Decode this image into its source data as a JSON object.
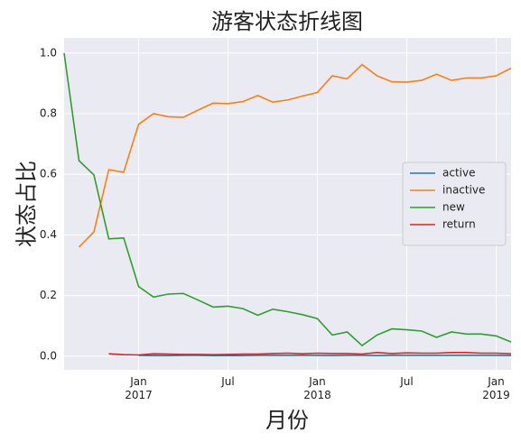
{
  "chart_data": {
    "type": "line",
    "title": "游客状态折线图",
    "x_label": "月份",
    "y_label": "状态占比",
    "x": [
      "2016-08",
      "2016-09",
      "2016-10",
      "2016-11",
      "2016-12",
      "2017-01",
      "2017-02",
      "2017-03",
      "2017-04",
      "2017-05",
      "2017-06",
      "2017-07",
      "2017-08",
      "2017-09",
      "2017-10",
      "2017-11",
      "2017-12",
      "2018-01",
      "2018-02",
      "2018-03",
      "2018-04",
      "2018-05",
      "2018-06",
      "2018-07",
      "2018-08",
      "2018-09",
      "2018-10",
      "2018-11",
      "2018-12",
      "2019-01",
      "2019-02"
    ],
    "series": [
      {
        "name": "active",
        "color": "#1f77b4",
        "values": [
          null,
          null,
          null,
          null,
          null,
          0.003,
          0.002,
          0.002,
          0.003,
          0.003,
          0.002,
          0.002,
          0.002,
          0.003,
          0.003,
          0.003,
          0.003,
          0.003,
          0.002,
          0.003,
          0.003,
          0.002,
          0.003,
          0.003,
          0.003,
          0.003,
          0.003,
          0.003,
          0.003,
          0.003,
          0.002
        ]
      },
      {
        "name": "inactive",
        "color": "#ff7f0e",
        "values": [
          null,
          0.36,
          0.41,
          0.615,
          0.607,
          0.765,
          0.8,
          0.79,
          0.788,
          0.812,
          0.835,
          0.833,
          0.84,
          0.86,
          0.838,
          0.845,
          0.858,
          0.87,
          0.925,
          0.915,
          0.962,
          0.925,
          0.905,
          0.904,
          0.91,
          0.93,
          0.91,
          0.918,
          0.918,
          0.925,
          0.95
        ]
      },
      {
        "name": "new",
        "color": "#2ca02c",
        "values": [
          1.0,
          0.645,
          0.598,
          0.387,
          0.39,
          0.23,
          0.195,
          0.205,
          0.207,
          0.185,
          0.162,
          0.165,
          0.157,
          0.135,
          0.155,
          0.147,
          0.137,
          0.124,
          0.07,
          0.08,
          0.035,
          0.07,
          0.09,
          0.087,
          0.083,
          0.062,
          0.08,
          0.073,
          0.073,
          0.067,
          0.047
        ]
      },
      {
        "name": "return",
        "color": "#d62728",
        "values": [
          null,
          null,
          null,
          0.008,
          0.005,
          0.004,
          0.008,
          0.007,
          0.006,
          0.006,
          0.005,
          0.006,
          0.007,
          0.007,
          0.009,
          0.01,
          0.008,
          0.01,
          0.009,
          0.009,
          0.007,
          0.012,
          0.009,
          0.011,
          0.01,
          0.01,
          0.012,
          0.012,
          0.01,
          0.01,
          0.008
        ]
      }
    ],
    "xlim": [
      "2016-08",
      "2019-02"
    ],
    "xticks": [
      {
        "value": "2017-01",
        "label": "Jan\n2017"
      },
      {
        "value": "2017-07",
        "label": "Jul"
      },
      {
        "value": "2018-01",
        "label": "Jan\n2018"
      },
      {
        "value": "2018-07",
        "label": "Jul"
      },
      {
        "value": "2019-01",
        "label": "Jan\n2019"
      }
    ],
    "ylim": [
      -0.045,
      1.05
    ],
    "yticks": [
      {
        "value": 0,
        "label": "0.0"
      },
      0.2,
      0.4,
      0.6,
      0.8,
      {
        "value": 1,
        "label": "1.0"
      }
    ],
    "grid": true,
    "legend": "center right"
  }
}
